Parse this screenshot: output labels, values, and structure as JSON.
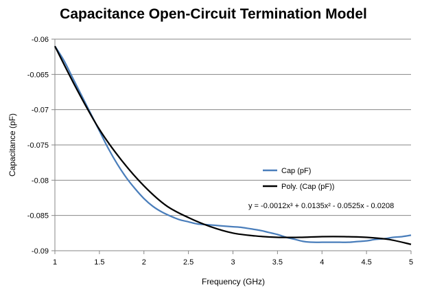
{
  "chart_data": {
    "type": "line",
    "title": "Capacitance Open-Circuit Termination Model",
    "xlabel": "Frequency (GHz)",
    "ylabel": "Capacitance (pF)",
    "xlim": [
      1,
      5
    ],
    "ylim": [
      -0.09,
      -0.06
    ],
    "x_ticks": [
      1,
      1.5,
      2,
      2.5,
      3,
      3.5,
      4,
      4.5,
      5
    ],
    "x_tick_labels": [
      "1",
      "1.5",
      "2",
      "2.5",
      "3",
      "3.5",
      "4",
      "4.5",
      "5"
    ],
    "y_ticks": [
      -0.06,
      -0.065,
      -0.07,
      -0.075,
      -0.08,
      -0.085,
      -0.09
    ],
    "y_tick_labels": [
      "-0.06",
      "-0.065",
      "-0.07",
      "-0.075",
      "-0.08",
      "-0.085",
      "-0.09"
    ],
    "grid": "horizontal",
    "legend_position": "right",
    "series": [
      {
        "name": "Cap (pF)",
        "color": "#4a7ebb",
        "x": [
          1.0,
          1.1,
          1.2,
          1.3,
          1.4,
          1.5,
          1.6,
          1.7,
          1.8,
          1.9,
          2.0,
          2.1,
          2.2,
          2.3,
          2.4,
          2.5,
          2.6,
          2.7,
          2.8,
          2.9,
          3.0,
          3.1,
          3.2,
          3.3,
          3.4,
          3.5,
          3.6,
          3.7,
          3.8,
          3.9,
          4.0,
          4.1,
          4.2,
          4.3,
          4.4,
          4.5,
          4.6,
          4.7,
          4.8,
          4.9,
          5.0
        ],
        "values": [
          -0.061,
          -0.063,
          -0.0655,
          -0.068,
          -0.0705,
          -0.073,
          -0.0755,
          -0.0777,
          -0.0796,
          -0.0812,
          -0.0826,
          -0.0837,
          -0.0845,
          -0.0851,
          -0.0856,
          -0.0859,
          -0.0862,
          -0.0863,
          -0.0864,
          -0.0865,
          -0.0866,
          -0.0867,
          -0.0869,
          -0.0871,
          -0.0874,
          -0.0877,
          -0.0881,
          -0.0884,
          -0.0887,
          -0.0888,
          -0.0888,
          -0.0888,
          -0.0888,
          -0.0888,
          -0.0887,
          -0.0886,
          -0.0884,
          -0.0883,
          -0.0881,
          -0.088,
          -0.0878
        ]
      },
      {
        "name": "Poly. (Cap (pF))",
        "color": "#000000",
        "coefficients": [
          -0.0012,
          0.0135,
          -0.0525,
          -0.0208
        ],
        "x": [
          1.0,
          1.25,
          1.5,
          1.75,
          2.0,
          2.25,
          2.5,
          2.75,
          3.0,
          3.25,
          3.5,
          3.75,
          4.0,
          4.25,
          4.5,
          4.75,
          5.0
        ],
        "values": [
          -0.061,
          -0.0672,
          -0.0728,
          -0.0772,
          -0.0808,
          -0.0836,
          -0.0853,
          -0.0866,
          -0.0875,
          -0.0879,
          -0.0881,
          -0.0881,
          -0.088,
          -0.088,
          -0.0881,
          -0.0884,
          -0.0891
        ]
      }
    ],
    "annotations": [
      {
        "text": "y = -0.0012x³ + 0.0135x² - 0.0525x - 0.0208"
      }
    ]
  }
}
